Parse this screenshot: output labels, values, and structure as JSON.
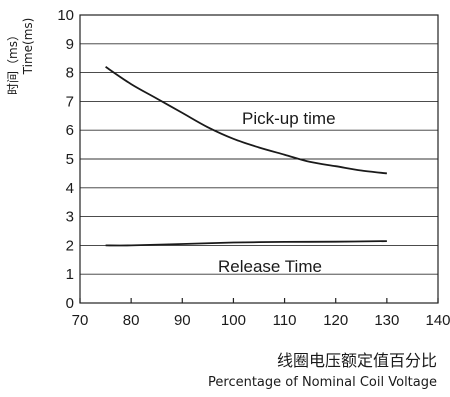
{
  "chart_data": {
    "type": "line",
    "ylabel_cn": "时间（ms）",
    "ylabel_en": "Time(ms)",
    "xlabel_cn": "线圈电压额定值百分比",
    "xlabel_en": "Percentage of Nominal Coil Voltage",
    "xlim": [
      70,
      140
    ],
    "ylim": [
      0,
      10
    ],
    "x_ticks": [
      70,
      80,
      90,
      100,
      110,
      120,
      130,
      140
    ],
    "y_ticks": [
      0,
      1,
      2,
      3,
      4,
      5,
      6,
      7,
      8,
      9,
      10
    ],
    "grid": "horizontal",
    "series": [
      {
        "name": "Pick-up time",
        "x": [
          75,
          80,
          85,
          90,
          95,
          100,
          105,
          110,
          115,
          120,
          125,
          130
        ],
        "y": [
          8.2,
          7.6,
          7.1,
          6.6,
          6.1,
          5.7,
          5.4,
          5.15,
          4.9,
          4.75,
          4.6,
          4.5
        ]
      },
      {
        "name": "Release Time",
        "x": [
          75,
          80,
          90,
          100,
          110,
          120,
          130
        ],
        "y": [
          2.0,
          2.0,
          2.05,
          2.1,
          2.12,
          2.13,
          2.15
        ]
      }
    ]
  }
}
